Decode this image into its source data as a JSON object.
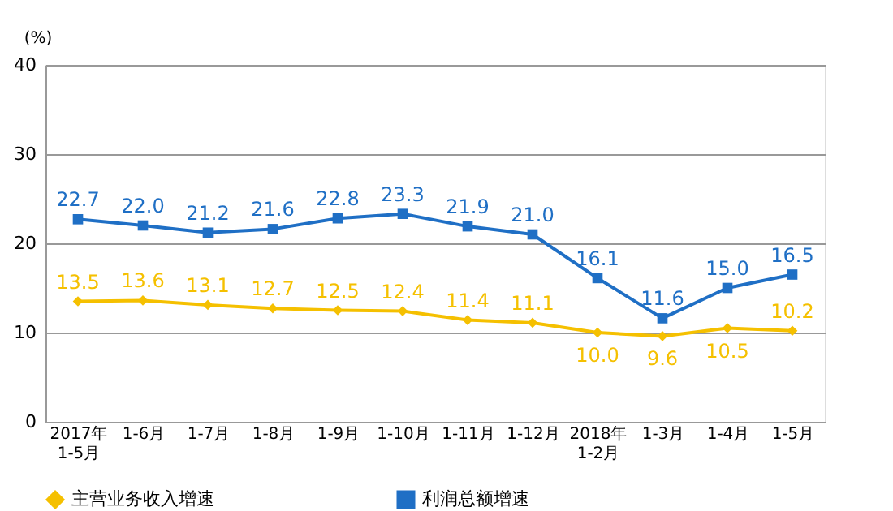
{
  "chart_data": {
    "type": "line",
    "ylabel": "(%)",
    "categories": [
      "2017年\n1-5月",
      "1-6月",
      "1-7月",
      "1-8月",
      "1-9月",
      "1-10月",
      "1-11月",
      "1-12月",
      "2018年\n1-2月",
      "1-3月",
      "1-4月",
      "1-5月"
    ],
    "series": [
      {
        "name": "主营业务收入增速",
        "color": "#f5c000",
        "marker": "diamond",
        "values": [
          13.5,
          13.6,
          13.1,
          12.7,
          12.5,
          12.4,
          11.4,
          11.1,
          10.0,
          9.6,
          10.5,
          10.2
        ],
        "value_labels": [
          "13.5",
          "13.6",
          "13.1",
          "12.7",
          "12.5",
          "12.4",
          "11.4",
          "11.1",
          "10.0",
          "9.6",
          "10.5",
          "10.2"
        ]
      },
      {
        "name": "利润总额增速",
        "color": "#1f6fc5",
        "marker": "square",
        "values": [
          22.7,
          22.0,
          21.2,
          21.6,
          22.8,
          23.3,
          21.9,
          21.0,
          16.1,
          11.6,
          15.0,
          16.5
        ],
        "value_labels": [
          "22.7",
          "22.0",
          "21.2",
          "21.6",
          "22.8",
          "23.3",
          "21.9",
          "21.0",
          "16.1",
          "11.6",
          "15.0",
          "16.5"
        ]
      }
    ],
    "ylim": [
      0,
      40
    ],
    "yticks": [
      0,
      10,
      20,
      30,
      40
    ],
    "grid": "y",
    "legend": "bottom",
    "line_style": "solid"
  }
}
